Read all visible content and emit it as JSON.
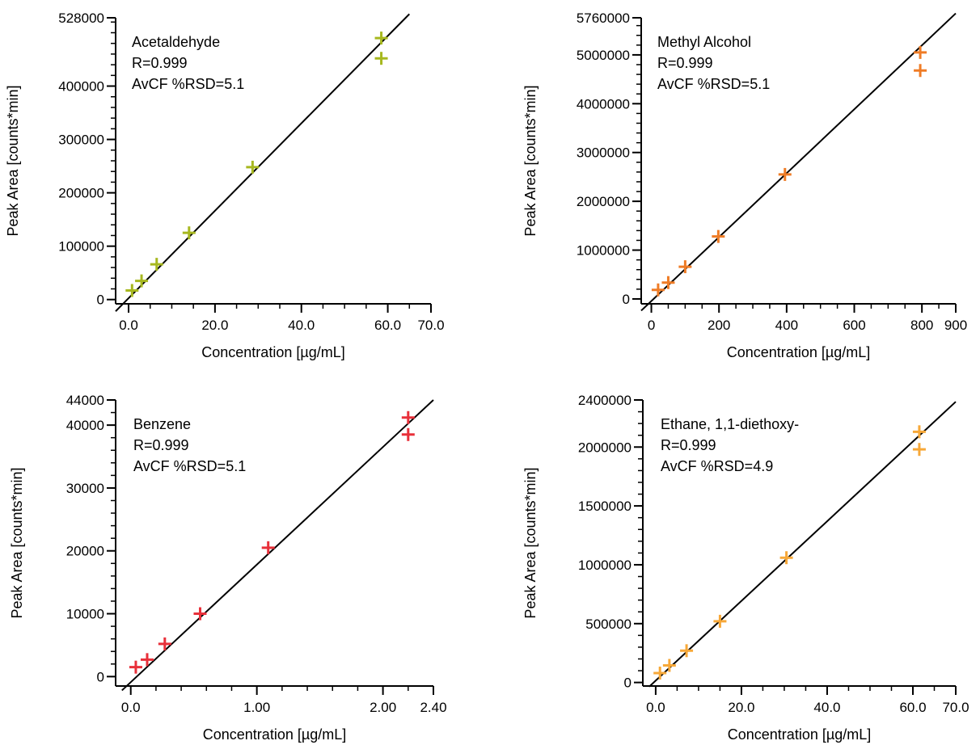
{
  "colors": {
    "axis": "#000000",
    "fit_line": "#000000",
    "acetaldehyde": "#a7b81f",
    "methyl_alcohol": "#ef7c26",
    "benzene": "#e8303a",
    "ethane_diethoxy": "#f7a838"
  },
  "chart_data": [
    {
      "type": "scatter",
      "title": "",
      "xlabel": "Concentration [µg/mL]",
      "ylabel": "Peak Area [counts*min]",
      "xlim": [
        -3,
        70
      ],
      "ylim": [
        -8000,
        528000
      ],
      "xticks": [
        0,
        20,
        40,
        60,
        70
      ],
      "xtick_labels": [
        "0.0",
        "20.0",
        "40.0",
        "60.0",
        "70.0"
      ],
      "x_minor_step": 5,
      "yticks": [
        0,
        100000,
        200000,
        300000,
        400000,
        528000
      ],
      "ytick_labels": [
        "0",
        "100000",
        "200000",
        "300000",
        "400000",
        "528000"
      ],
      "y_minor_step": 20000,
      "annotation": [
        "Acetaldehyde",
        "R=0.999",
        "AvCF %RSD=5.1"
      ],
      "grid": false,
      "series": [
        {
          "marker": "plus",
          "color": "#a7b81f",
          "x": [
            0.8,
            3.0,
            6.5,
            14.0,
            28.7,
            58.5,
            58.5
          ],
          "y": [
            17000,
            35000,
            66000,
            125000,
            248000,
            490000,
            452000
          ]
        }
      ],
      "fit_line": {
        "x": [
          -3,
          65
        ],
        "y": [
          -22000,
          535000
        ]
      }
    },
    {
      "type": "scatter",
      "title": "",
      "xlabel": "Concentration [µg/mL]",
      "ylabel": "Peak Area [counts*min]",
      "xlim": [
        -30,
        900
      ],
      "ylim": [
        -100000,
        5760000
      ],
      "xticks": [
        0,
        200,
        400,
        600,
        800,
        900
      ],
      "xtick_labels": [
        "0",
        "200",
        "400",
        "600",
        "800",
        "900"
      ],
      "x_minor_step": 50,
      "yticks": [
        0,
        1000000,
        2000000,
        3000000,
        4000000,
        5000000,
        5760000
      ],
      "ytick_labels": [
        "0",
        "1000000",
        "2000000",
        "3000000",
        "4000000",
        "5000000",
        "5760000"
      ],
      "y_minor_step": 200000,
      "annotation": [
        "Methyl Alcohol",
        "R=0.999",
        "AvCF %RSD=5.1"
      ],
      "grid": false,
      "series": [
        {
          "marker": "plus",
          "color": "#ef7c26",
          "x": [
            20,
            50,
            100,
            198,
            395,
            795,
            795
          ],
          "y": [
            185000,
            335000,
            660000,
            1280000,
            2550000,
            5050000,
            4680000
          ]
        }
      ],
      "fit_line": {
        "x": [
          -30,
          900
        ],
        "y": [
          -240000,
          5850000
        ]
      }
    },
    {
      "type": "scatter",
      "title": "",
      "xlabel": "Concentration [µg/mL]",
      "ylabel": "Peak Area [counts*min]",
      "xlim": [
        -0.12,
        2.4
      ],
      "ylim": [
        -1500,
        44000
      ],
      "xticks": [
        0,
        1,
        2,
        2.4
      ],
      "xtick_labels": [
        "0.0",
        "1.00",
        "2.00",
        "2.40"
      ],
      "x_minor_step": 0.2,
      "yticks": [
        0,
        10000,
        20000,
        30000,
        40000,
        44000
      ],
      "ytick_labels": [
        "0",
        "10000",
        "20000",
        "30000",
        "40000",
        "44000"
      ],
      "y_minor_step": 2000,
      "annotation": [
        "Benzene",
        "R=0.999",
        "AvCF %RSD=5.1"
      ],
      "grid": false,
      "series": [
        {
          "marker": "plus",
          "color": "#e8303a",
          "x": [
            0.04,
            0.13,
            0.27,
            0.55,
            1.09,
            2.2,
            2.2
          ],
          "y": [
            1500,
            2700,
            5200,
            10000,
            20500,
            41200,
            38500
          ]
        }
      ],
      "fit_line": {
        "x": [
          -0.07,
          2.4
        ],
        "y": [
          -2200,
          44000
        ]
      }
    },
    {
      "type": "scatter",
      "title": "",
      "xlabel": "Concentration [µg/mL]",
      "ylabel": "Peak Area [counts*min]",
      "xlim": [
        -3,
        70
      ],
      "ylim": [
        -30000,
        2400000
      ],
      "xticks": [
        0,
        20,
        40,
        60,
        70
      ],
      "xtick_labels": [
        "0.0",
        "20.0",
        "40.0",
        "60.0",
        "70.0"
      ],
      "x_minor_step": 5,
      "yticks": [
        0,
        500000,
        1000000,
        1500000,
        2000000,
        2400000
      ],
      "ytick_labels": [
        "0",
        "500000",
        "1000000",
        "1500000",
        "2000000",
        "2400000"
      ],
      "y_minor_step": 100000,
      "annotation": [
        "Ethane, 1,1-diethoxy-",
        "R=0.999",
        "AvCF %RSD=4.9"
      ],
      "grid": false,
      "series": [
        {
          "marker": "plus",
          "color": "#f7a838",
          "x": [
            1.0,
            3.2,
            7.2,
            15.0,
            30.5,
            61.5,
            61.5
          ],
          "y": [
            80000,
            145000,
            270000,
            520000,
            1060000,
            2130000,
            1980000
          ]
        }
      ],
      "fit_line": {
        "x": [
          -1.5,
          70
        ],
        "y": [
          -35000,
          2385000
        ]
      }
    }
  ]
}
